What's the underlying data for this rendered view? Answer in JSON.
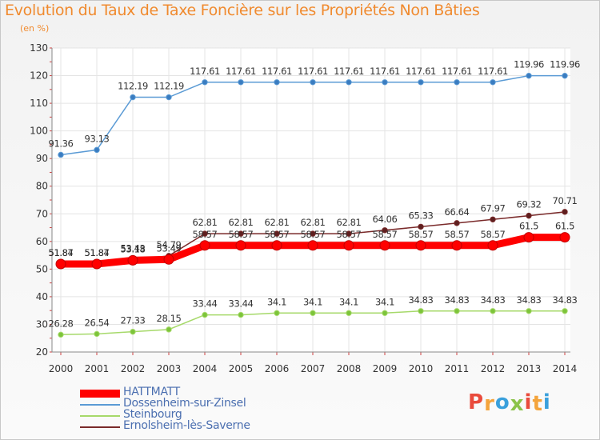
{
  "page": {
    "title": "Evolution du Taux de Taxe Foncière sur les Propriétés Non Bâties",
    "unit": "(en %)",
    "brand": [
      "P",
      "r",
      "o",
      "x",
      "i",
      "t",
      "i"
    ],
    "brand_colors": [
      "#e94b3c",
      "#f4a43c",
      "#3aa0dc",
      "#8bc34a",
      "#e94b3c",
      "#f4a43c",
      "#3aa0dc"
    ]
  },
  "chart_data": {
    "type": "line",
    "title": "Evolution du Taux de Taxe Foncière sur les Propriétés Non Bâties",
    "ylabel": "(en %)",
    "xlabel": "",
    "ylim": [
      20,
      130
    ],
    "yticks": [
      20,
      30,
      40,
      50,
      60,
      70,
      80,
      90,
      100,
      110,
      120,
      130
    ],
    "categories": [
      "2000",
      "2001",
      "2002",
      "2003",
      "2004",
      "2005",
      "2006",
      "2007",
      "2008",
      "2009",
      "2010",
      "2011",
      "2012",
      "2013",
      "2014"
    ],
    "grid": true,
    "legend_position": "bottom-left",
    "series": [
      {
        "name": "Dossenheim-sur-Zinsel",
        "color": "#5b9bd5",
        "marker": "#3a7cc0",
        "emphasis": false,
        "values": [
          91.36,
          93.13,
          112.19,
          112.19,
          117.61,
          117.61,
          117.61,
          117.61,
          117.61,
          117.61,
          117.61,
          117.61,
          117.61,
          119.96,
          119.96
        ],
        "labels": [
          "91.36",
          "93.13",
          "112.19",
          "112.19",
          "117.61",
          "117.61",
          "117.61",
          "117.61",
          "117.61",
          "117.61",
          "117.61",
          "117.61",
          "117.61",
          "119.96",
          "119.96"
        ]
      },
      {
        "name": "Ernolsheim-lès-Saverne",
        "color": "#7a2a2a",
        "marker": "#5e1f1f",
        "emphasis": false,
        "values": [
          51.87,
          51.87,
          53.43,
          54.79,
          62.81,
          62.81,
          62.81,
          62.81,
          62.81,
          64.06,
          65.33,
          66.64,
          67.97,
          69.32,
          70.71
        ],
        "labels": [
          "51.87",
          "51.87",
          "53.43",
          "54.79",
          "62.81",
          "62.81",
          "62.81",
          "62.81",
          "62.81",
          "64.06",
          "65.33",
          "66.64",
          "67.97",
          "69.32",
          "70.71"
        ]
      },
      {
        "name": "HATTMATT",
        "color": "#ff0000",
        "marker": "#e00000",
        "emphasis": true,
        "values": [
          51.84,
          51.84,
          53.18,
          53.49,
          58.57,
          58.57,
          58.57,
          58.57,
          58.57,
          58.57,
          58.57,
          58.57,
          58.57,
          61.5,
          61.5
        ],
        "labels": [
          "51.84",
          "51.84",
          "53.18",
          "53.49",
          "58.57",
          "58.57",
          "58.57",
          "58.57",
          "58.57",
          "58.57",
          "58.57",
          "58.57",
          "58.57",
          "61.5",
          "61.5"
        ]
      },
      {
        "name": "Steinbourg",
        "color": "#a6d96a",
        "marker": "#7cc43a",
        "emphasis": false,
        "values": [
          26.28,
          26.54,
          27.33,
          28.15,
          33.44,
          33.44,
          34.1,
          34.1,
          34.1,
          34.1,
          34.83,
          34.83,
          34.83,
          34.83,
          34.83
        ],
        "labels": [
          "26.28",
          "26.54",
          "27.33",
          "28.15",
          "33.44",
          "33.44",
          "34.1",
          "34.1",
          "34.1",
          "34.1",
          "34.83",
          "34.83",
          "34.83",
          "34.83",
          "34.83"
        ]
      }
    ],
    "legend": [
      {
        "name": "HATTMATT",
        "color": "#ff0000",
        "emphasis": true
      },
      {
        "name": "Dossenheim-sur-Zinsel",
        "color": "#5b9bd5",
        "emphasis": false
      },
      {
        "name": "Steinbourg",
        "color": "#a6d96a",
        "emphasis": false
      },
      {
        "name": "Ernolsheim-lès-Saverne",
        "color": "#7a2a2a",
        "emphasis": false
      }
    ]
  }
}
